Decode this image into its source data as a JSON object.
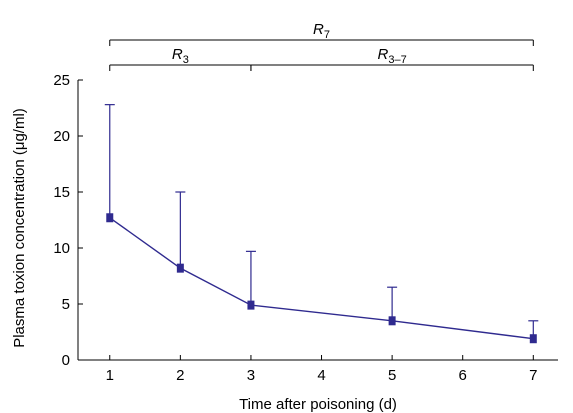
{
  "chart_data": {
    "type": "line",
    "title": "",
    "xlabel": "Time after poisoning (d)",
    "ylabel": "Plasma toxion concentration (μg/ml)",
    "xlim": [
      0.55,
      7.35
    ],
    "ylim": [
      0,
      25
    ],
    "x_ticks": [
      1,
      2,
      3,
      4,
      5,
      6,
      7
    ],
    "y_ticks": [
      0,
      5,
      10,
      15,
      20,
      25
    ],
    "grid": false,
    "legend": "none",
    "series": [
      {
        "color": "#2f2a8f",
        "points": [
          {
            "x": 1,
            "y": 12.7,
            "err_upper": 22.8
          },
          {
            "x": 2,
            "y": 8.2,
            "err_upper": 15.0
          },
          {
            "x": 3,
            "y": 4.9,
            "err_upper": 9.7
          },
          {
            "x": 5,
            "y": 3.5,
            "err_upper": 6.5
          },
          {
            "x": 7,
            "y": 1.9,
            "err_upper": 3.5
          }
        ]
      }
    ],
    "brackets": [
      {
        "main": "R",
        "sub": "7",
        "from": 1,
        "to": 7,
        "level": "top"
      },
      {
        "main": "R",
        "sub": "3",
        "from": 1,
        "to": 3,
        "level": "bottom"
      },
      {
        "main": "R",
        "sub": "3–7",
        "from": 3,
        "to": 7,
        "level": "bottom"
      }
    ]
  }
}
